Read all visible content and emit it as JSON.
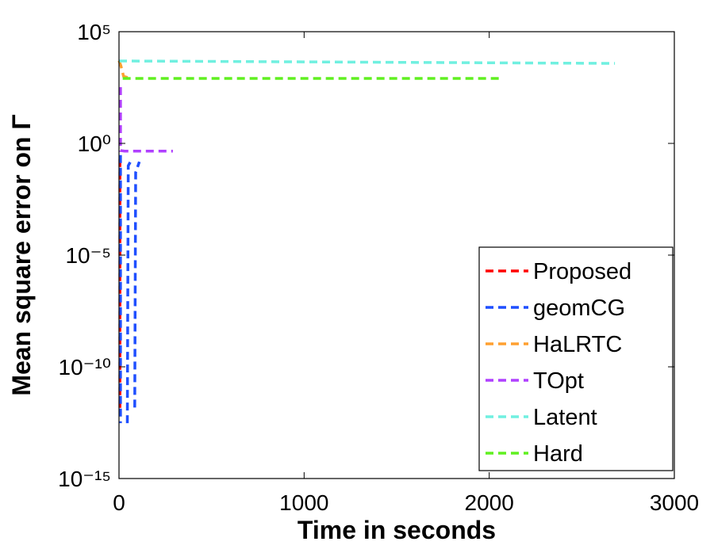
{
  "chart_data": {
    "type": "line",
    "xlabel": "Time in seconds",
    "ylabel": "Mean square error on Γ",
    "xlim": [
      0,
      3000
    ],
    "xticks": [
      0,
      1000,
      2000,
      3000
    ],
    "ylim": [
      1e-15,
      100000
    ],
    "log_y": true,
    "yticks": [
      {
        "value": 1e-15,
        "label": "10⁻¹⁵"
      },
      {
        "value": 1e-10,
        "label": "10⁻¹⁰"
      },
      {
        "value": 1e-05,
        "label": "10⁻⁵"
      },
      {
        "value": 1,
        "label": "10⁰"
      },
      {
        "value": 100000,
        "label": "10⁵"
      }
    ],
    "legend": "lower right",
    "series": [
      {
        "name": "Proposed",
        "color": "#ff0000",
        "x": [
          5,
          5
        ],
        "values": [
          0.2,
          1e-12
        ]
      },
      {
        "name": "geomCG",
        "color": "#1f4fff",
        "x": [
          8,
          8,
          null,
          45,
          50,
          70,
          null,
          85,
          90,
          110
        ],
        "values": [
          0.3,
          3e-13,
          null,
          3e-13,
          0.1,
          0.2,
          null,
          1.5e-12,
          0.05,
          0.15
        ]
      },
      {
        "name": "HaLRTC",
        "color": "#ffa030",
        "x": [
          0,
          10,
          25,
          45,
          70
        ],
        "values": [
          5000,
          3000,
          1000,
          900,
          850
        ]
      },
      {
        "name": "TOpt",
        "color": "#b040ff",
        "x": [
          8,
          8,
          30,
          291
        ],
        "values": [
          330,
          0.48,
          0.45,
          0.45
        ]
      },
      {
        "name": "Latent",
        "color": "#70f0e0",
        "x": [
          0,
          2679
        ],
        "values": [
          4900,
          3800
        ]
      },
      {
        "name": "Hard",
        "color": "#60f020",
        "x": [
          20,
          2066
        ],
        "values": [
          810,
          810
        ]
      }
    ]
  }
}
